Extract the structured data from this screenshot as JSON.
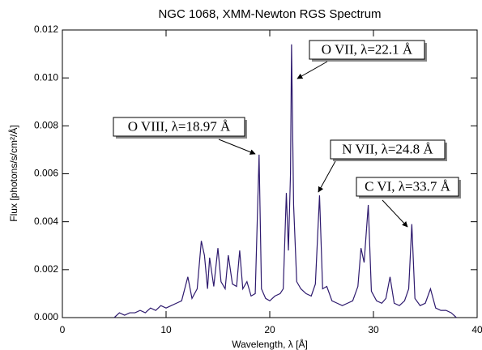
{
  "chart_data": {
    "type": "line",
    "title": "NGC 1068, XMM-Newton RGS Spectrum",
    "x_label": "Wavelength, λ [Å]",
    "y_label": "Flux [photons/s/cm²/Å]",
    "color": "#2e1a6e",
    "xlim": [
      0,
      40
    ],
    "xticks": [
      0,
      10,
      20,
      30,
      40
    ],
    "ylim": [
      0,
      0.012
    ],
    "yticks": [
      {
        "value": 0,
        "label": "0.000"
      },
      {
        "value": 0.002,
        "label": "0.002"
      },
      {
        "value": 0.004,
        "label": "0.004"
      },
      {
        "value": 0.006,
        "label": "0.006"
      },
      {
        "value": 0.008,
        "label": "0.008"
      },
      {
        "value": 0.01,
        "label": "0.010"
      },
      {
        "value": 0.012,
        "label": "0.012"
      }
    ],
    "annotations": [
      "O VII, λ=22.1 Å",
      "O VIII, λ=18.97 Å",
      "N VII, λ=24.8 Å",
      "C VI, λ=33.7 Å"
    ],
    "x": [
      5.0,
      5.5,
      6.0,
      6.5,
      7.0,
      7.5,
      8.0,
      8.5,
      9.0,
      9.5,
      10.0,
      10.5,
      11.0,
      11.5,
      12.1,
      12.5,
      13.0,
      13.4,
      13.7,
      14.0,
      14.2,
      14.6,
      15.0,
      15.3,
      15.7,
      16.0,
      16.4,
      16.8,
      17.1,
      17.4,
      17.8,
      18.2,
      18.6,
      18.97,
      19.2,
      19.6,
      20.0,
      20.5,
      21.0,
      21.3,
      21.6,
      21.8,
      22.0,
      22.1,
      22.3,
      22.6,
      23.0,
      23.5,
      24.0,
      24.4,
      24.8,
      25.1,
      25.5,
      26.0,
      26.5,
      27.0,
      27.5,
      28.0,
      28.5,
      28.8,
      29.1,
      29.5,
      29.8,
      30.3,
      30.8,
      31.2,
      31.6,
      32.0,
      32.5,
      33.0,
      33.4,
      33.7,
      34.0,
      34.5,
      35.0,
      35.5,
      36.0,
      36.5,
      37.0,
      37.5,
      38.0
    ],
    "values": [
      0.0,
      0.0002,
      0.0001,
      0.0002,
      0.0002,
      0.0003,
      0.0002,
      0.0004,
      0.0003,
      0.0005,
      0.0004,
      0.0005,
      0.0006,
      0.0007,
      0.0017,
      0.0008,
      0.0012,
      0.0032,
      0.0026,
      0.0012,
      0.0025,
      0.0013,
      0.0029,
      0.0015,
      0.0012,
      0.0026,
      0.0014,
      0.0013,
      0.0028,
      0.0012,
      0.0015,
      0.0009,
      0.001,
      0.0068,
      0.0012,
      0.0008,
      0.0007,
      0.0009,
      0.001,
      0.0012,
      0.0052,
      0.0028,
      0.006,
      0.0114,
      0.0047,
      0.0015,
      0.0012,
      0.001,
      0.0009,
      0.0014,
      0.0051,
      0.0012,
      0.0013,
      0.0007,
      0.0006,
      0.0005,
      0.0006,
      0.0007,
      0.0013,
      0.0029,
      0.0023,
      0.0047,
      0.0011,
      0.0007,
      0.0006,
      0.0008,
      0.0017,
      0.0006,
      0.0005,
      0.0007,
      0.0012,
      0.0039,
      0.0008,
      0.0005,
      0.0006,
      0.0012,
      0.0004,
      0.0003,
      0.0003,
      0.0002,
      0.0
    ]
  }
}
